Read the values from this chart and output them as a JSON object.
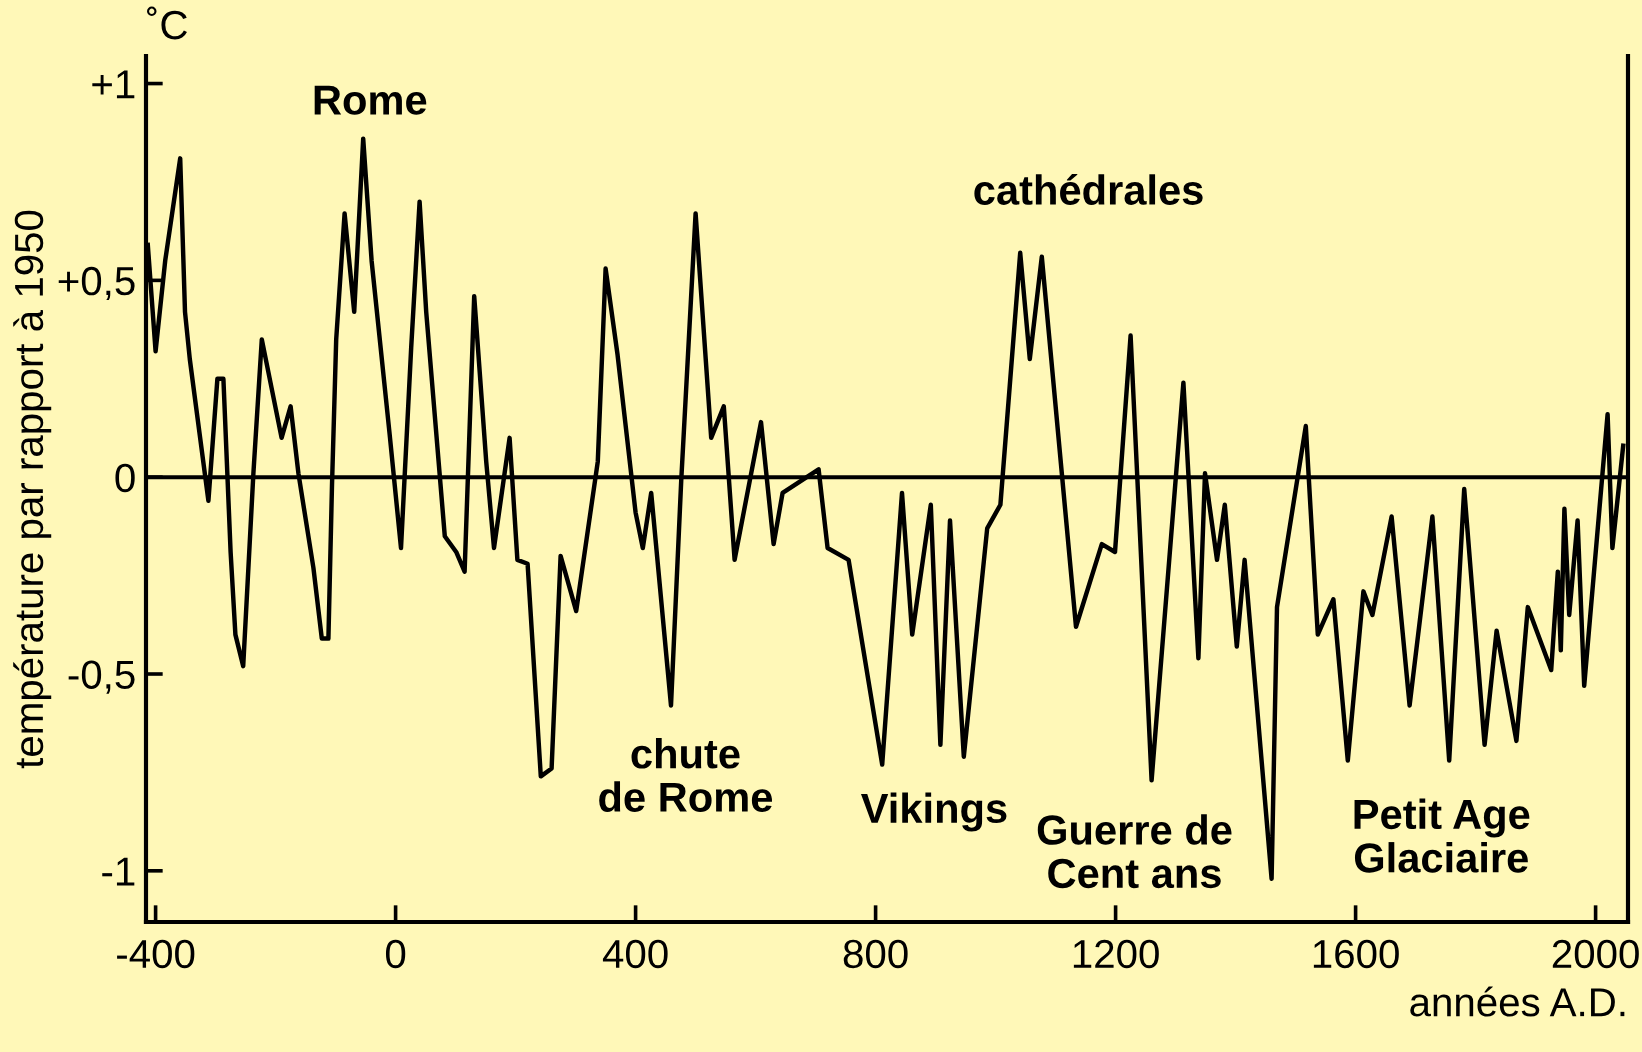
{
  "chart_data": {
    "type": "line",
    "ylabel": "température par rapport à 1950",
    "xlabel": "années A.D.",
    "x": [
      -413,
      -400,
      -384,
      -359,
      -351,
      -343,
      -312,
      -297,
      -287,
      -275,
      -267,
      -254,
      -237,
      -223,
      -190,
      -175,
      -162,
      -137,
      -123,
      -112,
      -106,
      -99,
      -85,
      -69,
      -54,
      -40,
      -10,
      9,
      26,
      40,
      51,
      82,
      101,
      115,
      131,
      151,
      164,
      190,
      203,
      220,
      242,
      260,
      275,
      301,
      337,
      350,
      370,
      400,
      412,
      426,
      459,
      476,
      500,
      526,
      547,
      565,
      609,
      630,
      645,
      705,
      720,
      755,
      811,
      844,
      861,
      892,
      908,
      924,
      947,
      986,
      1008,
      1041,
      1057,
      1077,
      1134,
      1177,
      1199,
      1225,
      1260,
      1313,
      1338,
      1349,
      1369,
      1382,
      1402,
      1415,
      1460,
      1469,
      1517,
      1537,
      1563,
      1587,
      1613,
      1628,
      1660,
      1690,
      1728,
      1756,
      1781,
      1815,
      1835,
      1868,
      1887,
      1926,
      1937,
      1942,
      1948,
      1956,
      1970,
      1981,
      2020,
      2028,
      2046
    ],
    "series": [
      {
        "color": "#000000",
        "values": [
          0.59,
          0.32,
          0.55,
          0.81,
          0.42,
          0.3,
          -0.06,
          0.25,
          0.25,
          -0.19,
          -0.4,
          -0.48,
          0.01,
          0.35,
          0.1,
          0.18,
          0.01,
          -0.23,
          -0.41,
          -0.41,
          -0.02,
          0.35,
          0.67,
          0.42,
          0.86,
          0.55,
          0.11,
          -0.18,
          0.33,
          0.7,
          0.42,
          -0.15,
          -0.19,
          -0.24,
          0.46,
          0.04,
          -0.18,
          0.1,
          -0.21,
          -0.22,
          -0.76,
          -0.74,
          -0.2,
          -0.34,
          0.04,
          0.53,
          0.31,
          -0.09,
          -0.18,
          -0.04,
          -0.58,
          -0.01,
          0.67,
          0.1,
          0.18,
          -0.21,
          0.14,
          -0.17,
          -0.04,
          0.02,
          -0.18,
          -0.21,
          -0.73,
          -0.04,
          -0.4,
          -0.07,
          -0.68,
          -0.11,
          -0.71,
          -0.13,
          -0.07,
          0.57,
          0.3,
          0.56,
          -0.38,
          -0.17,
          -0.19,
          0.36,
          -0.77,
          0.24,
          -0.46,
          0.01,
          -0.21,
          -0.07,
          -0.43,
          -0.21,
          -1.02,
          -0.33,
          0.13,
          -0.4,
          -0.31,
          -0.72,
          -0.29,
          -0.35,
          -0.1,
          -0.58,
          -0.1,
          -0.72,
          -0.03,
          -0.68,
          -0.39,
          -0.67,
          -0.33,
          -0.49,
          -0.24,
          -0.44,
          -0.08,
          -0.35,
          -0.11,
          -0.53,
          0.16,
          -0.18,
          0.08
        ]
      }
    ],
    "xlim": [
      -416,
      2054
    ],
    "xticks": [
      -400,
      0,
      400,
      800,
      1200,
      1600,
      2000
    ],
    "ylim": [
      -1.13,
      1.07
    ],
    "yticks": [
      {
        "value": 1,
        "label": "+1"
      },
      {
        "value": 0.5,
        "label": "+0,5"
      },
      0,
      {
        "value": -0.5,
        "label": "-0,5"
      },
      -1
    ],
    "ref_lines": [
      {
        "axis": "y",
        "value": 0,
        "color": "#000000"
      }
    ],
    "marker": "none",
    "line_style": "solid",
    "grid": false,
    "legend": false,
    "annotations": [
      "˚C",
      "Rome",
      "chute\nde Rome",
      "Vikings",
      "cathédrales",
      "Guerre de\nCent ans",
      "Petit Age\nGlaciaire"
    ]
  }
}
